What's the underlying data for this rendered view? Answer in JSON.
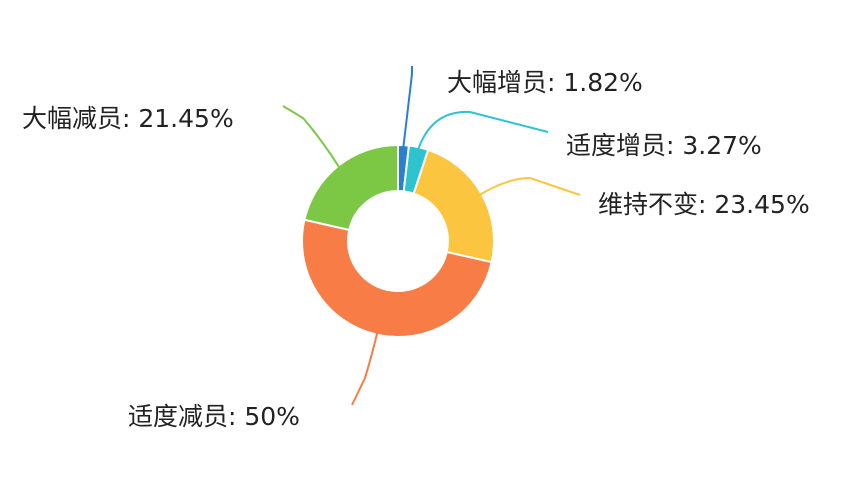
{
  "chart_data": {
    "type": "pie",
    "donut": true,
    "legend": "none",
    "slices": [
      {
        "label": "大幅增员",
        "value": 1.82,
        "display": "大幅增员: 1.82%",
        "color": "#2a7fcf"
      },
      {
        "label": "适度增员",
        "value": 3.27,
        "display": "适度增员: 3.27%",
        "color": "#2ec4cf"
      },
      {
        "label": "维持不变",
        "value": 23.45,
        "display": "维持不变: 23.45%",
        "color": "#fbc53f"
      },
      {
        "label": "适度减员",
        "value": 50,
        "display": "适度减员: 50%",
        "color": "#f77c45"
      },
      {
        "label": "大幅减员",
        "value": 21.45,
        "display": "大幅减员: 21.45%",
        "color": "#7cc844"
      }
    ]
  }
}
